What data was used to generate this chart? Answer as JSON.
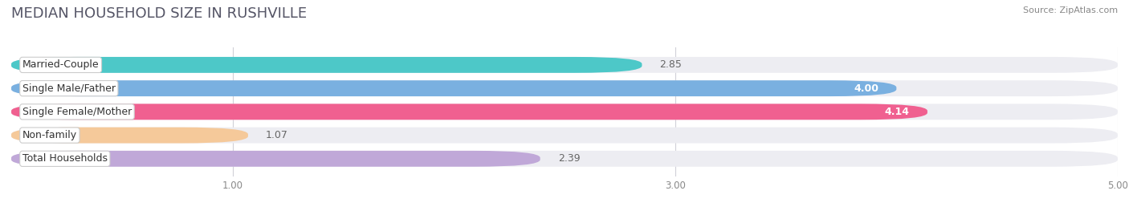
{
  "title": "MEDIAN HOUSEHOLD SIZE IN RUSHVILLE",
  "source": "Source: ZipAtlas.com",
  "categories": [
    "Married-Couple",
    "Single Male/Father",
    "Single Female/Mother",
    "Non-family",
    "Total Households"
  ],
  "values": [
    2.85,
    4.0,
    4.14,
    1.07,
    2.39
  ],
  "bar_colors": [
    "#4dc8c8",
    "#7ab0e0",
    "#f06090",
    "#f5c99a",
    "#c0a8d8"
  ],
  "label_bg_colors": [
    "#ffffff",
    "#ffffff",
    "#ffffff",
    "#ffffff",
    "#ffffff"
  ],
  "value_inside": [
    false,
    true,
    true,
    false,
    false
  ],
  "value_colors_inside": [
    "white",
    "white"
  ],
  "xlim_start": 0.0,
  "xlim_end": 5.0,
  "xticks": [
    1.0,
    3.0,
    5.0
  ],
  "background_color": "#ffffff",
  "bar_bg_color": "#ededf2",
  "title_fontsize": 13,
  "label_fontsize": 9,
  "value_fontsize": 9,
  "source_fontsize": 8
}
